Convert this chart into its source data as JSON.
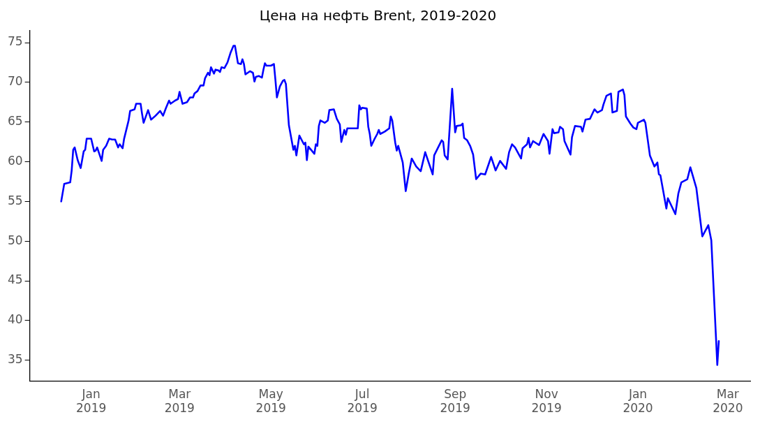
{
  "chart_data": {
    "type": "line",
    "title": "Цена на нефть Brent, 2019-2020",
    "x": [
      "2018-12-12",
      "2018-12-14",
      "2018-12-18",
      "2018-12-19",
      "2018-12-20",
      "2018-12-21",
      "2018-12-23",
      "2018-12-25",
      "2018-12-27",
      "2018-12-28",
      "2018-12-29",
      "2019-01-01",
      "2019-01-03",
      "2019-01-04",
      "2019-01-05",
      "2019-01-08",
      "2019-01-09",
      "2019-01-11",
      "2019-01-13",
      "2019-01-15",
      "2019-01-17",
      "2019-01-19",
      "2019-01-20",
      "2019-01-22",
      "2019-01-23",
      "2019-01-26",
      "2019-01-27",
      "2019-01-30",
      "2019-01-31",
      "2019-02-03",
      "2019-02-04",
      "2019-02-05",
      "2019-02-08",
      "2019-02-10",
      "2019-02-13",
      "2019-02-16",
      "2019-02-18",
      "2019-02-19",
      "2019-02-20",
      "2019-02-22",
      "2019-02-23",
      "2019-02-26",
      "2019-02-28",
      "2019-03-01",
      "2019-03-03",
      "2019-03-06",
      "2019-03-08",
      "2019-03-10",
      "2019-03-11",
      "2019-03-13",
      "2019-03-15",
      "2019-03-17",
      "2019-03-18",
      "2019-03-20",
      "2019-03-21",
      "2019-03-22",
      "2019-03-24",
      "2019-03-25",
      "2019-03-27",
      "2019-03-28",
      "2019-03-29",
      "2019-03-31",
      "2019-04-02",
      "2019-04-04",
      "2019-04-06",
      "2019-04-07",
      "2019-04-09",
      "2019-04-11",
      "2019-04-12",
      "2019-04-13",
      "2019-04-14",
      "2019-04-17",
      "2019-04-19",
      "2019-04-20",
      "2019-04-21",
      "2019-04-23",
      "2019-04-25",
      "2019-04-26",
      "2019-04-27",
      "2019-04-28",
      "2019-05-01",
      "2019-05-03",
      "2019-05-04",
      "2019-05-05",
      "2019-05-07",
      "2019-05-09",
      "2019-05-10",
      "2019-05-11",
      "2019-05-13",
      "2019-05-16",
      "2019-05-17",
      "2019-05-18",
      "2019-05-20",
      "2019-05-23",
      "2019-05-24",
      "2019-05-25",
      "2019-05-26",
      "2019-05-30",
      "2019-05-31",
      "2019-06-01",
      "2019-06-02",
      "2019-06-03",
      "2019-06-06",
      "2019-06-08",
      "2019-06-09",
      "2019-06-12",
      "2019-06-14",
      "2019-06-16",
      "2019-06-17",
      "2019-06-19",
      "2019-06-20",
      "2019-06-21",
      "2019-06-24",
      "2019-06-28",
      "2019-06-29",
      "2019-06-30",
      "2019-07-01",
      "2019-07-04",
      "2019-07-05",
      "2019-07-06",
      "2019-07-07",
      "2019-07-09",
      "2019-07-11",
      "2019-07-12",
      "2019-07-13",
      "2019-07-16",
      "2019-07-19",
      "2019-07-20",
      "2019-07-21",
      "2019-07-23",
      "2019-07-24",
      "2019-07-25",
      "2019-07-27",
      "2019-07-28",
      "2019-07-30",
      "2019-08-01",
      "2019-08-03",
      "2019-08-06",
      "2019-08-09",
      "2019-08-12",
      "2019-08-17",
      "2019-08-18",
      "2019-08-23",
      "2019-08-24",
      "2019-08-25",
      "2019-08-27",
      "2019-08-30",
      "2019-09-01",
      "2019-09-02",
      "2019-09-05",
      "2019-09-06",
      "2019-09-07",
      "2019-09-09",
      "2019-09-11",
      "2019-09-13",
      "2019-09-15",
      "2019-09-18",
      "2019-09-21",
      "2019-09-25",
      "2019-09-28",
      "2019-10-01",
      "2019-10-05",
      "2019-10-07",
      "2019-10-09",
      "2019-10-11",
      "2019-10-15",
      "2019-10-16",
      "2019-10-19",
      "2019-10-20",
      "2019-10-21",
      "2019-10-23",
      "2019-10-27",
      "2019-10-30",
      "2019-11-02",
      "2019-11-03",
      "2019-11-05",
      "2019-11-06",
      "2019-11-09",
      "2019-11-10",
      "2019-11-12",
      "2019-11-13",
      "2019-11-17",
      "2019-11-18",
      "2019-11-20",
      "2019-11-24",
      "2019-11-25",
      "2019-11-27",
      "2019-11-30",
      "2019-12-02",
      "2019-12-03",
      "2019-12-05",
      "2019-12-08",
      "2019-12-09",
      "2019-12-11",
      "2019-12-14",
      "2019-12-15",
      "2019-12-18",
      "2019-12-19",
      "2019-12-22",
      "2019-12-23",
      "2019-12-24",
      "2019-12-27",
      "2019-12-29",
      "2019-12-31",
      "2020-01-01",
      "2020-01-05",
      "2020-01-06",
      "2020-01-09",
      "2020-01-12",
      "2020-01-14",
      "2020-01-15",
      "2020-01-16",
      "2020-01-20",
      "2020-01-21",
      "2020-01-26",
      "2020-01-28",
      "2020-01-30",
      "2020-02-03",
      "2020-02-05",
      "2020-02-09",
      "2020-02-13",
      "2020-02-17",
      "2020-02-19",
      "2020-02-23",
      "2020-02-24"
    ],
    "series": [
      {
        "color": "#0000ff",
        "values": [
          55.0,
          57.2,
          57.4,
          58.9,
          61.5,
          61.8,
          60.2,
          59.2,
          61.3,
          61.5,
          62.9,
          62.9,
          61.3,
          61.4,
          61.8,
          60.1,
          61.5,
          62.0,
          62.9,
          62.8,
          62.8,
          61.8,
          62.2,
          61.7,
          62.9,
          65.2,
          66.4,
          66.6,
          67.3,
          67.3,
          66.0,
          64.9,
          66.5,
          65.3,
          65.8,
          66.4,
          65.8,
          66.3,
          66.8,
          67.7,
          67.3,
          67.7,
          67.9,
          68.8,
          67.3,
          67.5,
          68.1,
          68.1,
          68.6,
          68.9,
          69.6,
          69.6,
          70.5,
          71.2,
          70.9,
          71.9,
          71.1,
          71.6,
          71.5,
          71.3,
          71.9,
          71.8,
          72.5,
          73.7,
          74.6,
          74.6,
          72.4,
          72.3,
          72.9,
          72.3,
          71.0,
          71.4,
          71.2,
          70.1,
          70.7,
          70.8,
          70.6,
          71.6,
          72.4,
          72.1,
          72.1,
          72.3,
          70.3,
          68.1,
          69.5,
          70.2,
          70.3,
          69.8,
          64.6,
          61.5,
          62.0,
          60.8,
          63.3,
          62.2,
          62.4,
          60.2,
          61.9,
          61.0,
          62.2,
          62.0,
          64.5,
          65.2,
          64.9,
          65.2,
          66.5,
          66.6,
          65.4,
          64.7,
          62.5,
          64.0,
          63.4,
          64.2,
          64.2,
          64.2,
          67.1,
          66.6,
          66.8,
          66.7,
          64.4,
          63.5,
          62.0,
          62.8,
          63.5,
          64.0,
          63.5,
          63.8,
          64.2,
          65.7,
          65.2,
          62.4,
          61.4,
          62.0,
          60.6,
          59.9,
          56.3,
          58.5,
          60.4,
          59.4,
          58.8,
          61.2,
          58.4,
          60.8,
          62.7,
          62.5,
          60.8,
          60.3,
          69.2,
          63.7,
          64.5,
          64.6,
          64.8,
          63.0,
          62.7,
          62.0,
          60.9,
          57.8,
          58.5,
          58.4,
          60.6,
          58.9,
          60.1,
          59.1,
          61.2,
          62.2,
          61.8,
          60.4,
          61.7,
          62.2,
          63.0,
          61.8,
          62.6,
          62.1,
          63.5,
          62.6,
          61.0,
          64.1,
          63.6,
          63.7,
          64.4,
          64.1,
          62.6,
          60.9,
          63.1,
          64.5,
          64.4,
          63.8,
          65.3,
          65.4,
          66.2,
          66.6,
          66.2,
          66.5,
          67.2,
          68.3,
          68.6,
          66.2,
          66.4,
          68.8,
          69.1,
          68.4,
          65.7,
          64.8,
          64.3,
          64.1,
          64.9,
          65.3,
          64.9,
          60.8,
          59.4,
          59.9,
          58.4,
          58.3,
          54.1,
          55.4,
          53.4,
          56.0,
          57.4,
          57.8,
          59.3,
          56.7,
          50.6,
          52.0,
          50.1,
          34.4,
          37.4
        ]
      }
    ],
    "xlim": [
      "2018-11-21",
      "2020-03-16"
    ],
    "xticks": [
      {
        "value": "2019-01-01",
        "label": "Jan\n2019"
      },
      {
        "value": "2019-03-01",
        "label": "Mar\n2019"
      },
      {
        "value": "2019-05-01",
        "label": "May\n2019"
      },
      {
        "value": "2019-07-01",
        "label": "Jul\n2019"
      },
      {
        "value": "2019-09-01",
        "label": "Sep\n2019"
      },
      {
        "value": "2019-11-01",
        "label": "Nov\n2019"
      },
      {
        "value": "2020-01-01",
        "label": "Jan\n2020"
      },
      {
        "value": "2020-03-01",
        "label": "Mar\n2020"
      }
    ],
    "ylim": [
      32.4,
      76.5
    ],
    "yticks": [
      35,
      40,
      45,
      50,
      55,
      60,
      65,
      70,
      75
    ],
    "grid": false,
    "legend": false,
    "marker": "none",
    "line_style": "solid"
  }
}
